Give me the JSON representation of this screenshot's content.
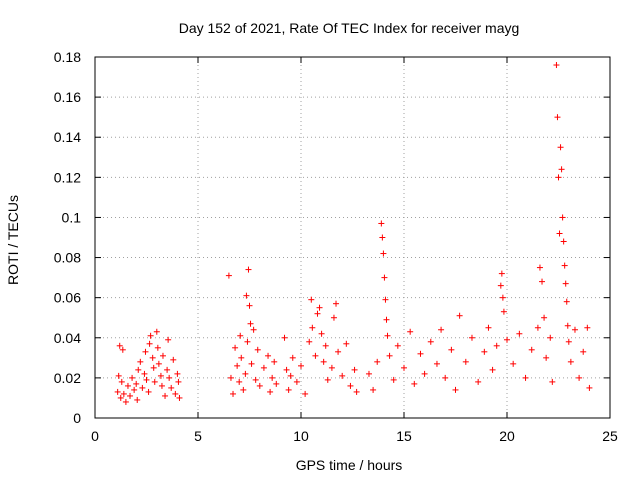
{
  "chart_data": {
    "type": "scatter",
    "title": "Day 152 of 2021, Rate Of TEC Index for receiver mayg",
    "xlabel": "GPS time / hours",
    "ylabel": "ROTI / TECUs",
    "xlim": [
      0,
      25
    ],
    "ylim": [
      0,
      0.18
    ],
    "xticks": [
      0,
      5,
      10,
      15,
      20,
      25
    ],
    "xtick_labels": [
      "0",
      "5",
      "10",
      "15",
      "20",
      "25"
    ],
    "yticks": [
      0,
      0.02,
      0.04,
      0.06,
      0.08,
      0.1,
      0.12,
      0.14,
      0.16,
      0.18
    ],
    "ytick_labels": [
      "0",
      "0.02",
      "0.04",
      "0.06",
      "0.08",
      "0.1",
      "0.12",
      "0.14",
      "0.16",
      "0.18"
    ],
    "grid": true,
    "marker": "+",
    "color": "#ff0000",
    "series": [
      {
        "name": "ROTI",
        "points": [
          [
            1.1,
            0.013
          ],
          [
            1.15,
            0.021
          ],
          [
            1.2,
            0.036
          ],
          [
            1.25,
            0.01
          ],
          [
            1.3,
            0.018
          ],
          [
            1.35,
            0.034
          ],
          [
            1.4,
            0.012
          ],
          [
            1.5,
            0.008
          ],
          [
            1.6,
            0.016
          ],
          [
            1.7,
            0.011
          ],
          [
            1.8,
            0.02
          ],
          [
            1.9,
            0.014
          ],
          [
            2.0,
            0.017
          ],
          [
            2.05,
            0.009
          ],
          [
            2.1,
            0.024
          ],
          [
            2.2,
            0.028
          ],
          [
            2.3,
            0.015
          ],
          [
            2.4,
            0.022
          ],
          [
            2.45,
            0.033
          ],
          [
            2.5,
            0.019
          ],
          [
            2.6,
            0.013
          ],
          [
            2.65,
            0.037
          ],
          [
            2.7,
            0.041
          ],
          [
            2.8,
            0.03
          ],
          [
            2.85,
            0.025
          ],
          [
            2.9,
            0.018
          ],
          [
            3.0,
            0.043
          ],
          [
            3.05,
            0.035
          ],
          [
            3.1,
            0.027
          ],
          [
            3.2,
            0.021
          ],
          [
            3.25,
            0.016
          ],
          [
            3.3,
            0.031
          ],
          [
            3.4,
            0.011
          ],
          [
            3.5,
            0.024
          ],
          [
            3.55,
            0.039
          ],
          [
            3.6,
            0.02
          ],
          [
            3.7,
            0.015
          ],
          [
            3.8,
            0.029
          ],
          [
            3.9,
            0.012
          ],
          [
            4.0,
            0.022
          ],
          [
            4.05,
            0.018
          ],
          [
            4.1,
            0.01
          ],
          [
            6.5,
            0.071
          ],
          [
            6.6,
            0.02
          ],
          [
            6.7,
            0.012
          ],
          [
            6.8,
            0.035
          ],
          [
            6.9,
            0.026
          ],
          [
            7.0,
            0.018
          ],
          [
            7.05,
            0.041
          ],
          [
            7.1,
            0.03
          ],
          [
            7.2,
            0.014
          ],
          [
            7.3,
            0.022
          ],
          [
            7.35,
            0.061
          ],
          [
            7.4,
            0.038
          ],
          [
            7.45,
            0.074
          ],
          [
            7.5,
            0.056
          ],
          [
            7.55,
            0.047
          ],
          [
            7.6,
            0.027
          ],
          [
            7.7,
            0.044
          ],
          [
            7.8,
            0.019
          ],
          [
            7.9,
            0.034
          ],
          [
            8.0,
            0.016
          ],
          [
            8.2,
            0.025
          ],
          [
            8.4,
            0.031
          ],
          [
            8.5,
            0.013
          ],
          [
            8.6,
            0.02
          ],
          [
            8.7,
            0.028
          ],
          [
            8.8,
            0.017
          ],
          [
            9.2,
            0.04
          ],
          [
            9.3,
            0.024
          ],
          [
            9.4,
            0.014
          ],
          [
            9.5,
            0.021
          ],
          [
            9.6,
            0.03
          ],
          [
            9.8,
            0.018
          ],
          [
            10.0,
            0.026
          ],
          [
            10.2,
            0.012
          ],
          [
            10.4,
            0.038
          ],
          [
            10.5,
            0.059
          ],
          [
            10.55,
            0.045
          ],
          [
            10.7,
            0.031
          ],
          [
            10.8,
            0.052
          ],
          [
            10.9,
            0.055
          ],
          [
            11.0,
            0.042
          ],
          [
            11.1,
            0.028
          ],
          [
            11.2,
            0.036
          ],
          [
            11.3,
            0.019
          ],
          [
            11.5,
            0.025
          ],
          [
            11.6,
            0.05
          ],
          [
            11.7,
            0.057
          ],
          [
            11.8,
            0.033
          ],
          [
            12.0,
            0.021
          ],
          [
            12.2,
            0.037
          ],
          [
            12.4,
            0.016
          ],
          [
            12.6,
            0.024
          ],
          [
            12.7,
            0.013
          ],
          [
            13.3,
            0.022
          ],
          [
            13.5,
            0.014
          ],
          [
            13.7,
            0.028
          ],
          [
            13.9,
            0.097
          ],
          [
            13.95,
            0.09
          ],
          [
            14.0,
            0.082
          ],
          [
            14.05,
            0.07
          ],
          [
            14.1,
            0.059
          ],
          [
            14.15,
            0.049
          ],
          [
            14.2,
            0.041
          ],
          [
            14.3,
            0.031
          ],
          [
            14.5,
            0.019
          ],
          [
            14.7,
            0.036
          ],
          [
            15.0,
            0.025
          ],
          [
            15.3,
            0.043
          ],
          [
            15.5,
            0.017
          ],
          [
            15.8,
            0.032
          ],
          [
            16.0,
            0.022
          ],
          [
            16.3,
            0.038
          ],
          [
            16.6,
            0.027
          ],
          [
            16.8,
            0.044
          ],
          [
            17.0,
            0.02
          ],
          [
            17.3,
            0.034
          ],
          [
            17.5,
            0.014
          ],
          [
            17.7,
            0.051
          ],
          [
            18.0,
            0.028
          ],
          [
            18.3,
            0.04
          ],
          [
            18.6,
            0.018
          ],
          [
            18.9,
            0.033
          ],
          [
            19.1,
            0.045
          ],
          [
            19.3,
            0.024
          ],
          [
            19.5,
            0.036
          ],
          [
            19.7,
            0.066
          ],
          [
            19.75,
            0.072
          ],
          [
            19.8,
            0.06
          ],
          [
            19.85,
            0.053
          ],
          [
            20.0,
            0.039
          ],
          [
            20.3,
            0.027
          ],
          [
            20.6,
            0.042
          ],
          [
            20.9,
            0.02
          ],
          [
            21.2,
            0.034
          ],
          [
            21.5,
            0.045
          ],
          [
            21.6,
            0.075
          ],
          [
            21.7,
            0.068
          ],
          [
            21.8,
            0.05
          ],
          [
            21.9,
            0.03
          ],
          [
            22.1,
            0.04
          ],
          [
            22.2,
            0.018
          ],
          [
            22.4,
            0.176
          ],
          [
            22.45,
            0.15
          ],
          [
            22.5,
            0.12
          ],
          [
            22.55,
            0.092
          ],
          [
            22.6,
            0.135
          ],
          [
            22.65,
            0.124
          ],
          [
            22.7,
            0.1
          ],
          [
            22.75,
            0.088
          ],
          [
            22.8,
            0.076
          ],
          [
            22.85,
            0.067
          ],
          [
            22.9,
            0.058
          ],
          [
            22.95,
            0.046
          ],
          [
            23.0,
            0.038
          ],
          [
            23.1,
            0.028
          ],
          [
            23.3,
            0.044
          ],
          [
            23.5,
            0.02
          ],
          [
            23.7,
            0.033
          ],
          [
            23.9,
            0.045
          ],
          [
            24.0,
            0.015
          ]
        ]
      }
    ]
  }
}
